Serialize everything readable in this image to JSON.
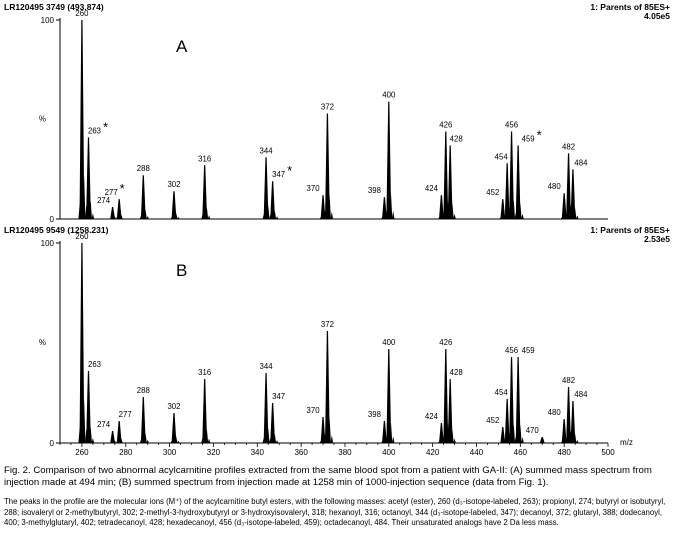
{
  "chart_data": [
    {
      "type": "mass-spectrum",
      "panel_label": "A",
      "header_left": "LR120495 3749 (493.874)",
      "header_right": "1: Parents of 85ES+",
      "intensity_label": "4.05e5",
      "ylabel": "%",
      "ytick_labels": [
        "100",
        "0"
      ],
      "ylim": [
        0,
        100
      ],
      "xlim": [
        250,
        500
      ],
      "peaks": [
        {
          "x": 260,
          "y": 100,
          "label": "260"
        },
        {
          "x": 263,
          "y": 41,
          "label": "263",
          "star": true
        },
        {
          "x": 274,
          "y": 6,
          "label": "274"
        },
        {
          "x": 277,
          "y": 10,
          "label": "277",
          "star": true
        },
        {
          "x": 288,
          "y": 22,
          "label": "288"
        },
        {
          "x": 302,
          "y": 14,
          "label": "302"
        },
        {
          "x": 316,
          "y": 27,
          "label": "316"
        },
        {
          "x": 344,
          "y": 31,
          "label": "344"
        },
        {
          "x": 347,
          "y": 19,
          "label": "347",
          "star": true
        },
        {
          "x": 370,
          "y": 12,
          "label": "370"
        },
        {
          "x": 372,
          "y": 53,
          "label": "372"
        },
        {
          "x": 398,
          "y": 11,
          "label": "398"
        },
        {
          "x": 400,
          "y": 59,
          "label": "400"
        },
        {
          "x": 424,
          "y": 12,
          "label": "424"
        },
        {
          "x": 426,
          "y": 44,
          "label": "426"
        },
        {
          "x": 428,
          "y": 37,
          "label": "428"
        },
        {
          "x": 452,
          "y": 10,
          "label": "452"
        },
        {
          "x": 454,
          "y": 28,
          "label": "454"
        },
        {
          "x": 456,
          "y": 44,
          "label": "456"
        },
        {
          "x": 459,
          "y": 37,
          "label": "459",
          "star": true
        },
        {
          "x": 480,
          "y": 13,
          "label": "480"
        },
        {
          "x": 482,
          "y": 33,
          "label": "482"
        },
        {
          "x": 484,
          "y": 25,
          "label": "484"
        }
      ]
    },
    {
      "type": "mass-spectrum",
      "panel_label": "B",
      "header_left": "LR120495 9549 (1258.231)",
      "header_right": "1: Parents of 85ES+",
      "intensity_label": "2.53e5",
      "ylabel": "%",
      "ytick_labels": [
        "100",
        "0"
      ],
      "ylim": [
        0,
        100
      ],
      "xlim": [
        250,
        500
      ],
      "xlabel": "m/z",
      "xtick_labels": [
        "260",
        "280",
        "300",
        "320",
        "340",
        "360",
        "380",
        "400",
        "420",
        "440",
        "460",
        "480",
        "500"
      ],
      "peaks": [
        {
          "x": 260,
          "y": 100,
          "label": "260"
        },
        {
          "x": 263,
          "y": 36,
          "label": "263"
        },
        {
          "x": 274,
          "y": 6,
          "label": "274"
        },
        {
          "x": 277,
          "y": 11,
          "label": "277"
        },
        {
          "x": 288,
          "y": 23,
          "label": "288"
        },
        {
          "x": 302,
          "y": 15,
          "label": "302"
        },
        {
          "x": 316,
          "y": 32,
          "label": "316"
        },
        {
          "x": 344,
          "y": 35,
          "label": "344"
        },
        {
          "x": 347,
          "y": 20,
          "label": "347"
        },
        {
          "x": 370,
          "y": 13,
          "label": "370"
        },
        {
          "x": 372,
          "y": 56,
          "label": "372"
        },
        {
          "x": 398,
          "y": 11,
          "label": "398"
        },
        {
          "x": 400,
          "y": 47,
          "label": "400"
        },
        {
          "x": 424,
          "y": 10,
          "label": "424"
        },
        {
          "x": 426,
          "y": 47,
          "label": "426"
        },
        {
          "x": 428,
          "y": 32,
          "label": "428"
        },
        {
          "x": 452,
          "y": 8,
          "label": "452"
        },
        {
          "x": 454,
          "y": 22,
          "label": "454"
        },
        {
          "x": 456,
          "y": 43,
          "label": "456"
        },
        {
          "x": 459,
          "y": 43,
          "label": "459"
        },
        {
          "x": 470,
          "y": 3,
          "label": "470"
        },
        {
          "x": 480,
          "y": 12,
          "label": "480"
        },
        {
          "x": 482,
          "y": 28,
          "label": "482"
        },
        {
          "x": 484,
          "y": 21,
          "label": "484"
        }
      ]
    }
  ],
  "caption": "Fig. 2. Comparison of two abnormal acylcarnitine profiles extracted from the same blood spot from a patient with GA-II: (A) summed mass spectrum from injection made at 494 min; (B) summed spectrum from injection made at 1258 min of 1000-injection sequence (data from Fig. 1).",
  "footnote": "The peaks in the profile are the molecular ions (M⁺) of the acylcarnitine butyl esters, with the following masses: acetyl (ester), 260 (d₃-isotope-labeled, 263); propionyl, 274; butyryl or isobutyryl, 288; isovaleryl or 2-methylbutyryl, 302; 2-methyl-3-hydroxybutyryl or 3-hydroxyisovaleryl, 318; hexanoyl, 316; octanoyl, 344 (d₃-isotope-labeled, 347); decanoyl, 372; glutaryl, 388; dodecanoyl, 400; 3-methylglutaryl, 402; tetradecanoyl, 428; hexadecanoyl, 456 (d₃-isotope-labeled, 459); octadecanoyl, 484. Their unsaturated analogs have 2 Da less mass.",
  "colors": {
    "ink": "#000000",
    "background": "#ffffff"
  }
}
